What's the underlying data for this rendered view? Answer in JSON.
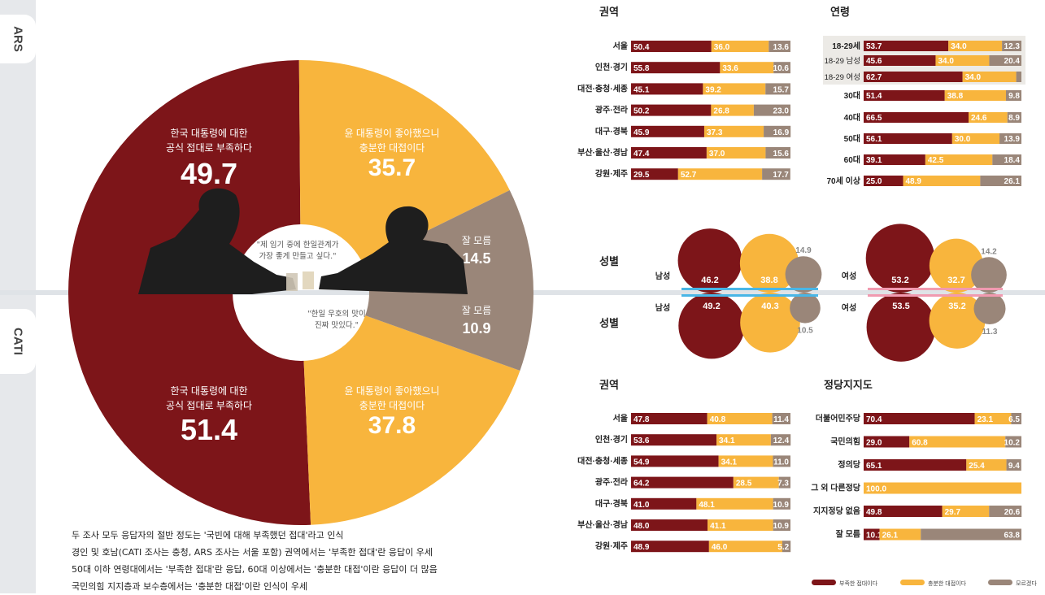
{
  "tabs": {
    "ars": "ARS",
    "cati": "CATI"
  },
  "colors": {
    "deficient": "#7d1519",
    "sufficient": "#f8b53d",
    "unknown": "#9a8679"
  },
  "donut": {
    "ars": {
      "deficient": {
        "label1": "한국 대통령에 대한",
        "label2": "공식 접대로 부족하다",
        "value": 49.7
      },
      "sufficient": {
        "label1": "윤 대통령이 좋아했으니",
        "label2": "충분한 대접이다",
        "value": 35.7
      },
      "unknown": {
        "label": "잘 모름",
        "value": 14.5
      }
    },
    "cati": {
      "deficient": {
        "label1": "한국 대통령에 대한",
        "label2": "공식 접대로 부족하다",
        "value": 51.4
      },
      "sufficient": {
        "label1": "윤 대통령이 좋아했으니",
        "label2": "충분한 대접이다",
        "value": 37.8
      },
      "unknown": {
        "label": "잘 모름",
        "value": 10.9
      }
    },
    "quote1": [
      "\"제 임기 중에 한일관계가",
      "가장 좋게 만들고 싶다.\""
    ],
    "quote2": [
      "\"한일 우호의 맛이",
      "진짜 맛있다.\""
    ]
  },
  "notes": [
    "두 조사 모두 응답자의 절반 정도는 '국빈에 대해 부족했던 접대'라고 인식",
    "경인 및 호남(CATI 조사는 충청, ARS 조사는 서울 포함) 권역에서는 '부족한 접대'란 응답이 우세",
    "50대 이하 연령대에서는 '부족한 접대'란 응답, 60대 이상에서는 '충분한 대접'이란 응답이 더 많음",
    "국민의힘 지지층과 보수층에서는 '충분한 대접'이란 인식이 우세"
  ],
  "legend": {
    "deficient": "부족한 접대이다",
    "sufficient": "충분한 대접이다",
    "unknown": "모르겠다"
  },
  "gender_titles": {
    "ars": "성별",
    "cati": "성별"
  },
  "chart_data": [
    {
      "type": "bar",
      "stacked": true,
      "orientation": "horizontal",
      "title": "권역",
      "survey": "ARS",
      "categories": [
        "서울",
        "인천·경기",
        "대전·충청·세종",
        "광주·전라",
        "대구·경북",
        "부산·울산·경남",
        "강원·제주"
      ],
      "series": [
        {
          "name": "부족한 접대이다",
          "values": [
            50.4,
            55.8,
            45.1,
            50.2,
            45.9,
            47.4,
            29.5
          ]
        },
        {
          "name": "충분한 대접이다",
          "values": [
            36.0,
            33.6,
            39.2,
            26.8,
            37.3,
            37.0,
            52.7
          ]
        },
        {
          "name": "모르겠다",
          "values": [
            13.6,
            10.6,
            15.7,
            23.0,
            16.9,
            15.6,
            17.7
          ]
        }
      ]
    },
    {
      "type": "bar",
      "stacked": true,
      "orientation": "horizontal",
      "title": "연령",
      "survey": "ARS",
      "categories": [
        "18-29세",
        "18-29 남성",
        "18-29 여성",
        "30대",
        "40대",
        "50대",
        "60대",
        "70세 이상"
      ],
      "series": [
        {
          "name": "부족한 접대이다",
          "values": [
            53.7,
            45.6,
            62.7,
            51.4,
            66.5,
            56.1,
            39.1,
            25.0
          ]
        },
        {
          "name": "충분한 대접이다",
          "values": [
            34.0,
            34.0,
            34.0,
            38.8,
            24.6,
            30.0,
            42.5,
            48.9
          ]
        },
        {
          "name": "모르겠다",
          "values": [
            12.3,
            20.4,
            null,
            9.8,
            8.9,
            13.9,
            18.4,
            26.1
          ]
        }
      ]
    },
    {
      "type": "bar",
      "stacked": true,
      "orientation": "horizontal",
      "title": "권역",
      "survey": "CATI",
      "categories": [
        "서울",
        "인천·경기",
        "대전·충청·세종",
        "광주·전라",
        "대구·경북",
        "부산·울산·경남",
        "강원·제주"
      ],
      "series": [
        {
          "name": "부족한 접대이다",
          "values": [
            47.8,
            53.6,
            54.9,
            64.2,
            41.0,
            48.0,
            48.9
          ]
        },
        {
          "name": "충분한 대접이다",
          "values": [
            40.8,
            34.1,
            34.1,
            28.5,
            48.1,
            41.1,
            46.0
          ]
        },
        {
          "name": "모르겠다",
          "values": [
            11.4,
            12.4,
            11.0,
            7.3,
            10.9,
            10.9,
            5.2
          ]
        }
      ]
    },
    {
      "type": "bar",
      "stacked": true,
      "orientation": "horizontal",
      "title": "정당지지도",
      "survey": "CATI",
      "categories": [
        "더불어민주당",
        "국민의힘",
        "정의당",
        "그 외 다른정당",
        "지지정당 없음",
        "잘 모름"
      ],
      "series": [
        {
          "name": "부족한 접대이다",
          "values": [
            70.4,
            29.0,
            65.1,
            null,
            49.8,
            10.1
          ]
        },
        {
          "name": "충분한 대접이다",
          "values": [
            23.1,
            60.8,
            25.4,
            100.0,
            29.7,
            26.1
          ]
        },
        {
          "name": "모르겠다",
          "values": [
            6.5,
            10.2,
            9.4,
            null,
            20.6,
            63.8
          ]
        }
      ]
    },
    {
      "type": "bubble",
      "title": "성별",
      "groups": [
        {
          "survey": "ARS",
          "label": "남성",
          "values": [
            46.2,
            38.8,
            14.9
          ]
        },
        {
          "survey": "ARS",
          "label": "여성",
          "values": [
            53.2,
            32.7,
            14.2
          ]
        },
        {
          "survey": "CATI",
          "label": "남성",
          "values": [
            49.2,
            40.3,
            10.5
          ]
        },
        {
          "survey": "CATI",
          "label": "여성",
          "values": [
            53.5,
            35.2,
            11.3
          ]
        }
      ]
    }
  ]
}
